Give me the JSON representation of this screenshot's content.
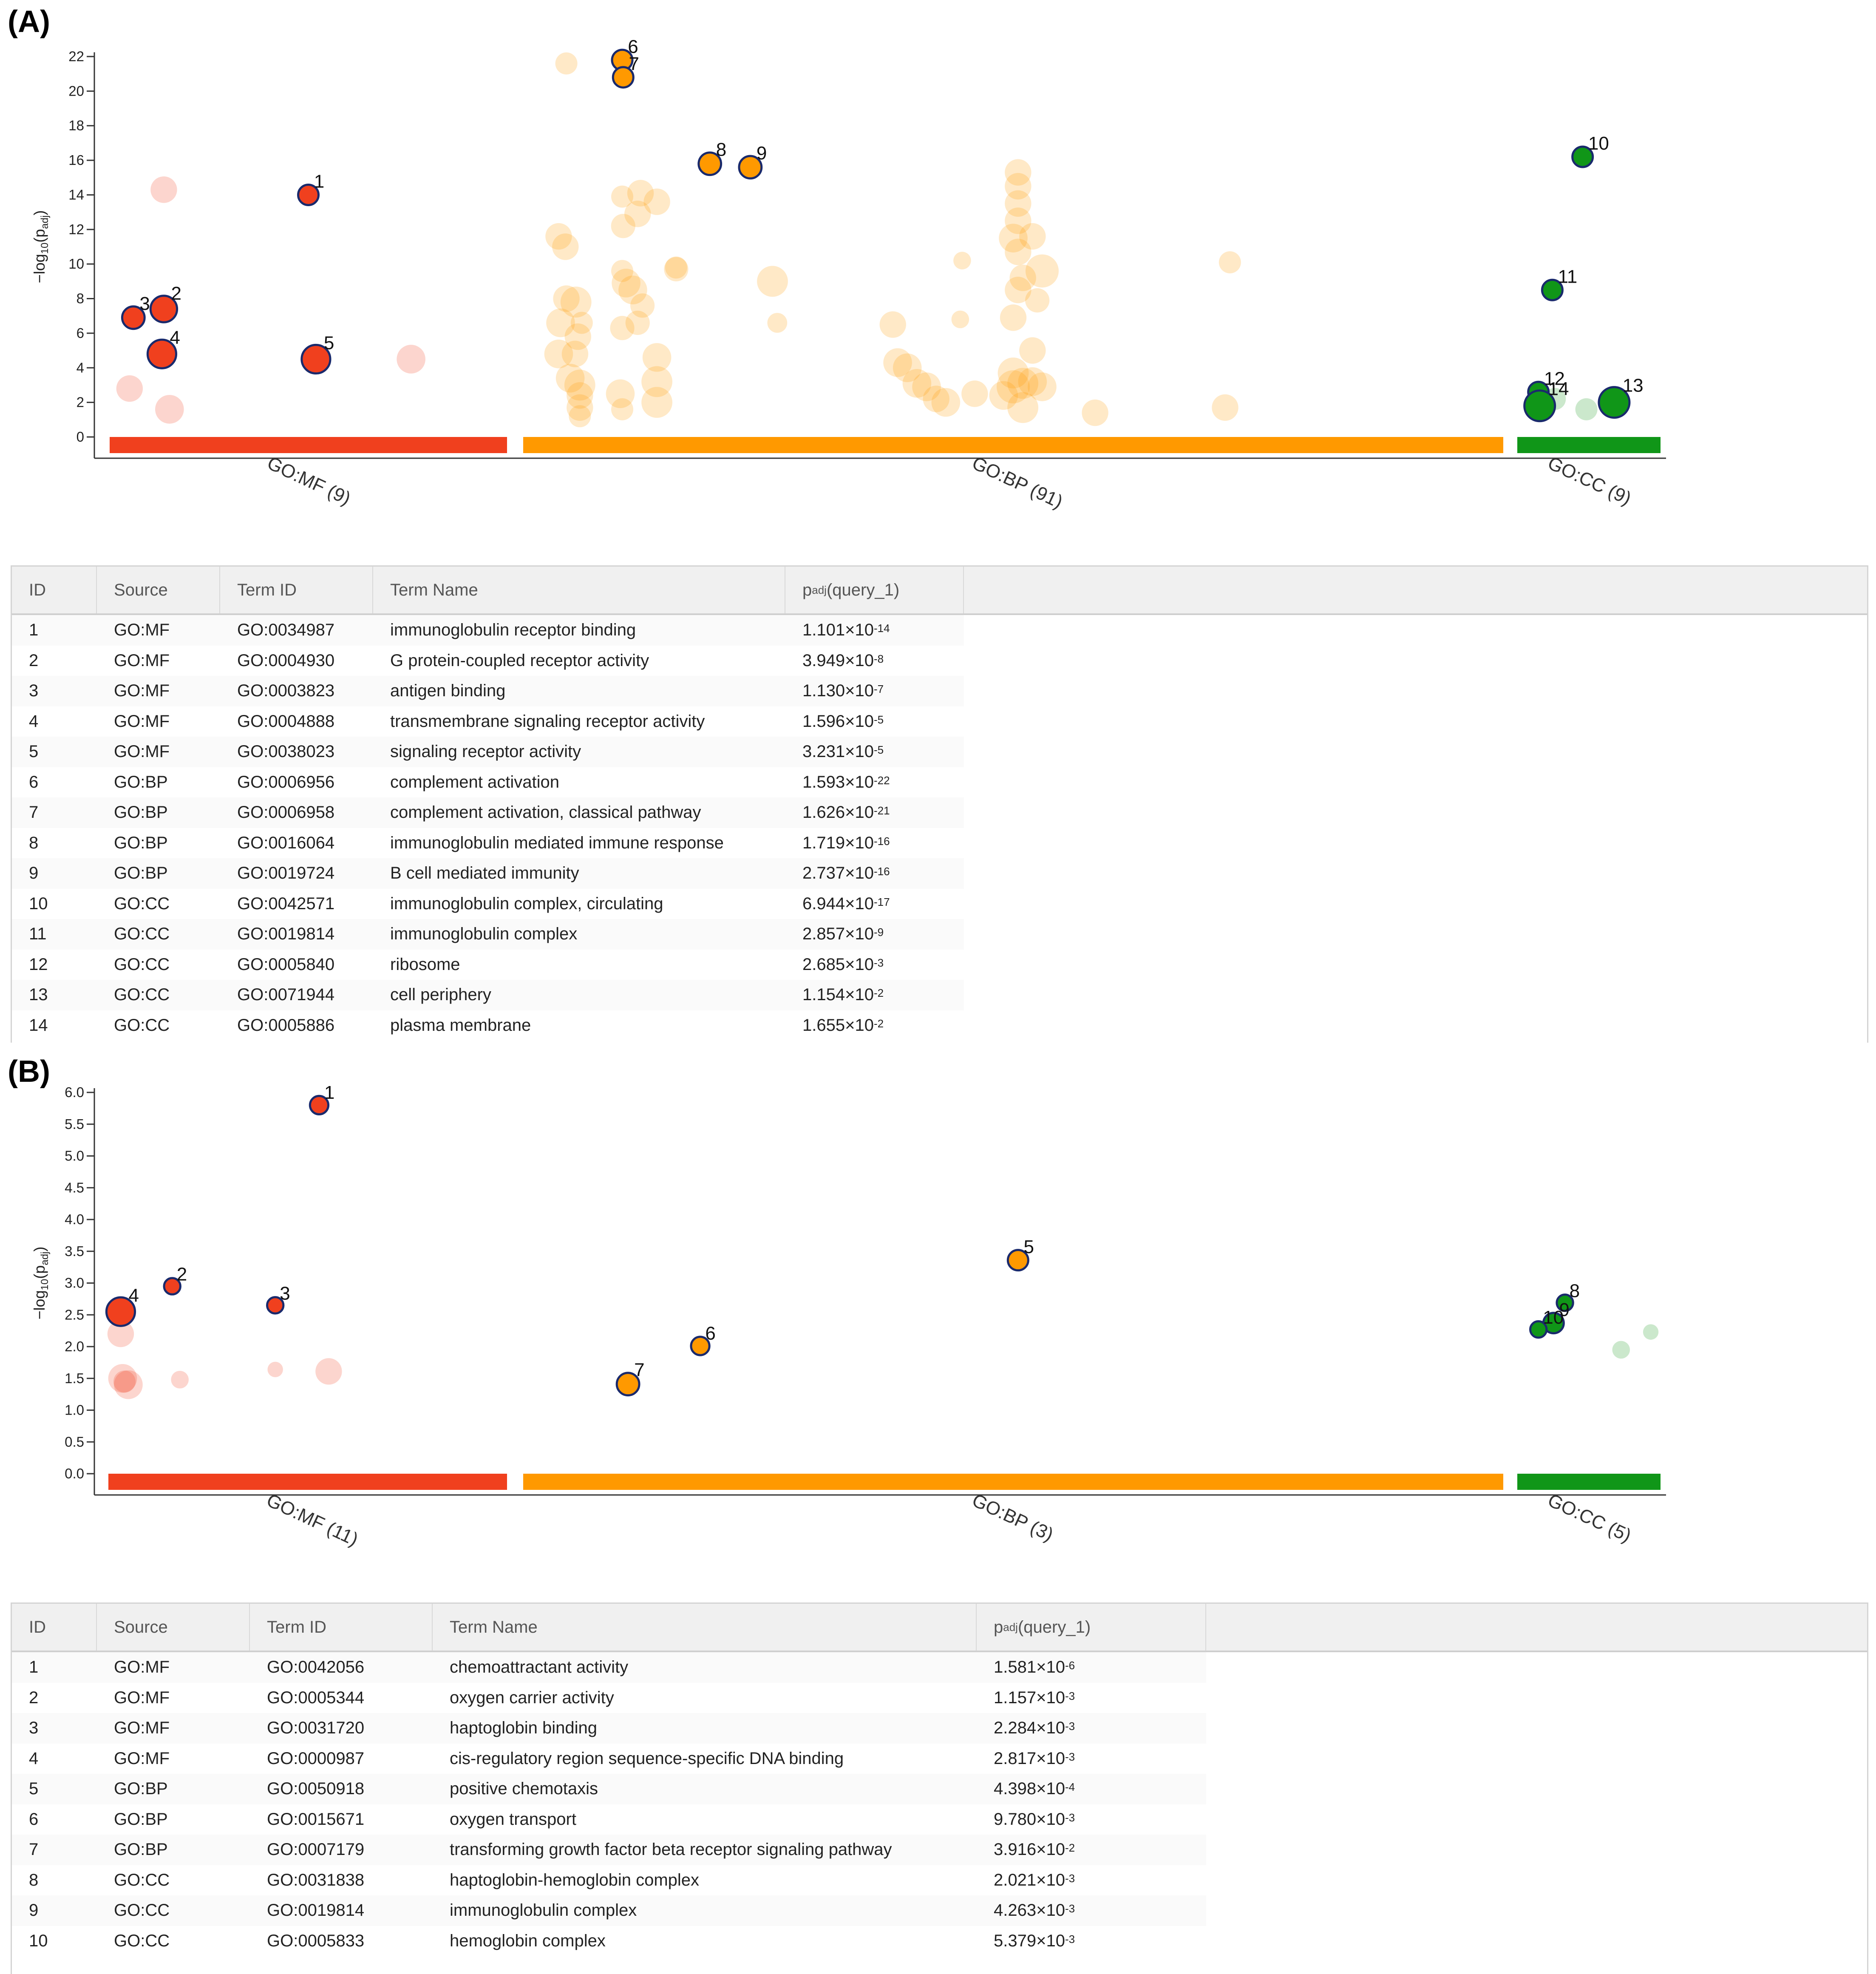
{
  "panel_a": {
    "label": "(A)",
    "chart_data": {
      "type": "scatter",
      "ylabel_parts": [
        "−log",
        "10",
        "(p",
        "adj",
        ")"
      ],
      "ylim": [
        0,
        22
      ],
      "yticks": [
        0,
        2,
        4,
        6,
        8,
        10,
        12,
        14,
        16,
        18,
        20,
        22
      ],
      "categories": [
        {
          "name": "GO:MF (9)",
          "color": "#f0401e",
          "xrange": [
            0,
            1
          ]
        },
        {
          "name": "GO:BP (91)",
          "color": "#ff9900",
          "xrange": [
            0,
            1
          ]
        },
        {
          "name": "GO:CC (9)",
          "color": "#109618",
          "xrange": [
            0,
            1
          ]
        }
      ],
      "highlighted": [
        {
          "id": "1",
          "cat": 0,
          "x": 0.5,
          "y": 14.0,
          "r": 1.0
        },
        {
          "id": "2",
          "cat": 0,
          "x": 0.12,
          "y": 7.4,
          "r": 1.3
        },
        {
          "id": "3",
          "cat": 0,
          "x": 0.04,
          "y": 6.9,
          "r": 1.1
        },
        {
          "id": "4",
          "cat": 0,
          "x": 0.115,
          "y": 4.8,
          "r": 1.4
        },
        {
          "id": "5",
          "cat": 0,
          "x": 0.52,
          "y": 4.5,
          "r": 1.4
        },
        {
          "id": "6",
          "cat": 1,
          "x": 0.094,
          "y": 21.8,
          "r": 1.0
        },
        {
          "id": "7",
          "cat": 1,
          "x": 0.095,
          "y": 20.8,
          "r": 1.0
        },
        {
          "id": "8",
          "cat": 1,
          "x": 0.185,
          "y": 15.8,
          "r": 1.1
        },
        {
          "id": "9",
          "cat": 1,
          "x": 0.227,
          "y": 15.6,
          "r": 1.1
        },
        {
          "id": "10",
          "cat": 2,
          "x": 0.45,
          "y": 16.2,
          "r": 1.0
        },
        {
          "id": "11",
          "cat": 2,
          "x": 0.21,
          "y": 8.5,
          "r": 1.0
        },
        {
          "id": "12",
          "cat": 2,
          "x": 0.1,
          "y": 2.6,
          "r": 1.0
        },
        {
          "id": "13",
          "cat": 2,
          "x": 0.7,
          "y": 2.0,
          "r": 1.5
        },
        {
          "id": "14",
          "cat": 2,
          "x": 0.11,
          "y": 1.8,
          "r": 1.5
        }
      ],
      "background_points": [
        {
          "cat": 0,
          "x": 0.12,
          "y": 14.3,
          "r": 1.2
        },
        {
          "cat": 0,
          "x": 0.03,
          "y": 2.8,
          "r": 1.2
        },
        {
          "cat": 0,
          "x": 0.135,
          "y": 1.6,
          "r": 1.3
        },
        {
          "cat": 0,
          "x": 0.77,
          "y": 4.5,
          "r": 1.3
        },
        {
          "cat": 1,
          "x": 0.036,
          "y": 21.6,
          "r": 1.0
        },
        {
          "cat": 1,
          "x": 0.094,
          "y": 13.9,
          "r": 1.0
        },
        {
          "cat": 1,
          "x": 0.113,
          "y": 14.1,
          "r": 1.2
        },
        {
          "cat": 1,
          "x": 0.13,
          "y": 13.6,
          "r": 1.2
        },
        {
          "cat": 1,
          "x": 0.11,
          "y": 12.9,
          "r": 1.2
        },
        {
          "cat": 1,
          "x": 0.095,
          "y": 12.2,
          "r": 1.1
        },
        {
          "cat": 1,
          "x": 0.028,
          "y": 11.6,
          "r": 1.2
        },
        {
          "cat": 1,
          "x": 0.035,
          "y": 11.0,
          "r": 1.2
        },
        {
          "cat": 1,
          "x": 0.15,
          "y": 9.7,
          "r": 1.1
        },
        {
          "cat": 1,
          "x": 0.094,
          "y": 9.6,
          "r": 1.0
        },
        {
          "cat": 1,
          "x": 0.098,
          "y": 8.9,
          "r": 1.3
        },
        {
          "cat": 1,
          "x": 0.105,
          "y": 8.5,
          "r": 1.3
        },
        {
          "cat": 1,
          "x": 0.036,
          "y": 8.0,
          "r": 1.2
        },
        {
          "cat": 1,
          "x": 0.046,
          "y": 7.8,
          "r": 1.4
        },
        {
          "cat": 1,
          "x": 0.115,
          "y": 7.6,
          "r": 1.1
        },
        {
          "cat": 1,
          "x": 0.03,
          "y": 6.6,
          "r": 1.3
        },
        {
          "cat": 1,
          "x": 0.052,
          "y": 6.6,
          "r": 1.0
        },
        {
          "cat": 1,
          "x": 0.094,
          "y": 6.3,
          "r": 1.1
        },
        {
          "cat": 1,
          "x": 0.11,
          "y": 6.6,
          "r": 1.1
        },
        {
          "cat": 1,
          "x": 0.048,
          "y": 5.8,
          "r": 1.2
        },
        {
          "cat": 1,
          "x": 0.028,
          "y": 4.8,
          "r": 1.3
        },
        {
          "cat": 1,
          "x": 0.045,
          "y": 4.8,
          "r": 1.2
        },
        {
          "cat": 1,
          "x": 0.13,
          "y": 4.6,
          "r": 1.3
        },
        {
          "cat": 1,
          "x": 0.04,
          "y": 3.4,
          "r": 1.3
        },
        {
          "cat": 1,
          "x": 0.05,
          "y": 3.0,
          "r": 1.4
        },
        {
          "cat": 1,
          "x": 0.13,
          "y": 3.2,
          "r": 1.4
        },
        {
          "cat": 1,
          "x": 0.05,
          "y": 2.4,
          "r": 1.2
        },
        {
          "cat": 1,
          "x": 0.092,
          "y": 2.5,
          "r": 1.3
        },
        {
          "cat": 1,
          "x": 0.13,
          "y": 2.0,
          "r": 1.4
        },
        {
          "cat": 1,
          "x": 0.05,
          "y": 1.7,
          "r": 1.2
        },
        {
          "cat": 1,
          "x": 0.094,
          "y": 1.6,
          "r": 1.0
        },
        {
          "cat": 1,
          "x": 0.05,
          "y": 1.2,
          "r": 1.0
        },
        {
          "cat": 1,
          "x": 0.15,
          "y": 9.8,
          "r": 1.0
        },
        {
          "cat": 1,
          "x": 0.25,
          "y": 9.0,
          "r": 1.4
        },
        {
          "cat": 1,
          "x": 0.255,
          "y": 6.6,
          "r": 0.9
        },
        {
          "cat": 1,
          "x": 0.375,
          "y": 6.5,
          "r": 1.2
        },
        {
          "cat": 1,
          "x": 0.447,
          "y": 10.2,
          "r": 0.8
        },
        {
          "cat": 1,
          "x": 0.445,
          "y": 6.8,
          "r": 0.8
        },
        {
          "cat": 1,
          "x": 0.38,
          "y": 4.3,
          "r": 1.3
        },
        {
          "cat": 1,
          "x": 0.39,
          "y": 4.0,
          "r": 1.3
        },
        {
          "cat": 1,
          "x": 0.4,
          "y": 3.1,
          "r": 1.3
        },
        {
          "cat": 1,
          "x": 0.41,
          "y": 2.9,
          "r": 1.3
        },
        {
          "cat": 1,
          "x": 0.42,
          "y": 2.2,
          "r": 1.2
        },
        {
          "cat": 1,
          "x": 0.43,
          "y": 2.0,
          "r": 1.3
        },
        {
          "cat": 1,
          "x": 0.46,
          "y": 2.5,
          "r": 1.2
        },
        {
          "cat": 1,
          "x": 0.49,
          "y": 2.4,
          "r": 1.3
        },
        {
          "cat": 1,
          "x": 0.5,
          "y": 2.9,
          "r": 1.5
        },
        {
          "cat": 1,
          "x": 0.5,
          "y": 3.7,
          "r": 1.4
        },
        {
          "cat": 1,
          "x": 0.51,
          "y": 3.1,
          "r": 1.4
        },
        {
          "cat": 1,
          "x": 0.51,
          "y": 1.7,
          "r": 1.4
        },
        {
          "cat": 1,
          "x": 0.52,
          "y": 3.2,
          "r": 1.3
        },
        {
          "cat": 1,
          "x": 0.52,
          "y": 5.0,
          "r": 1.2
        },
        {
          "cat": 1,
          "x": 0.53,
          "y": 2.9,
          "r": 1.3
        },
        {
          "cat": 1,
          "x": 0.5,
          "y": 6.9,
          "r": 1.2
        },
        {
          "cat": 1,
          "x": 0.505,
          "y": 8.5,
          "r": 1.2
        },
        {
          "cat": 1,
          "x": 0.51,
          "y": 9.2,
          "r": 1.2
        },
        {
          "cat": 1,
          "x": 0.505,
          "y": 10.7,
          "r": 1.2
        },
        {
          "cat": 1,
          "x": 0.5,
          "y": 11.5,
          "r": 1.3
        },
        {
          "cat": 1,
          "x": 0.52,
          "y": 11.6,
          "r": 1.2
        },
        {
          "cat": 1,
          "x": 0.505,
          "y": 12.5,
          "r": 1.2
        },
        {
          "cat": 1,
          "x": 0.505,
          "y": 13.5,
          "r": 1.2
        },
        {
          "cat": 1,
          "x": 0.505,
          "y": 14.5,
          "r": 1.2
        },
        {
          "cat": 1,
          "x": 0.505,
          "y": 15.3,
          "r": 1.2
        },
        {
          "cat": 1,
          "x": 0.525,
          "y": 7.9,
          "r": 1.1
        },
        {
          "cat": 1,
          "x": 0.53,
          "y": 9.6,
          "r": 1.5
        },
        {
          "cat": 1,
          "x": 0.585,
          "y": 1.4,
          "r": 1.2
        },
        {
          "cat": 1,
          "x": 0.725,
          "y": 10.1,
          "r": 1.0
        },
        {
          "cat": 1,
          "x": 0.72,
          "y": 1.7,
          "r": 1.2
        },
        {
          "cat": 2,
          "x": 0.23,
          "y": 2.2,
          "r": 1.0
        },
        {
          "cat": 2,
          "x": 0.48,
          "y": 1.6,
          "r": 1.0
        }
      ]
    },
    "table": {
      "columns": [
        "ID",
        "Source",
        "Term ID",
        "Term Name",
        "p_adj (query_1)"
      ],
      "padj_sub": "adj",
      "padj_pre": "p",
      "padj_post": " (query_1)",
      "rows": [
        {
          "id": "1",
          "source": "GO:MF",
          "term_id": "GO:0034987",
          "term_name": "immunoglobulin receptor binding",
          "padj_mant": "1.101×10",
          "padj_exp": "-14"
        },
        {
          "id": "2",
          "source": "GO:MF",
          "term_id": "GO:0004930",
          "term_name": "G protein-coupled receptor activity",
          "padj_mant": "3.949×10",
          "padj_exp": "-8"
        },
        {
          "id": "3",
          "source": "GO:MF",
          "term_id": "GO:0003823",
          "term_name": "antigen binding",
          "padj_mant": "1.130×10",
          "padj_exp": "-7"
        },
        {
          "id": "4",
          "source": "GO:MF",
          "term_id": "GO:0004888",
          "term_name": "transmembrane signaling receptor activity",
          "padj_mant": "1.596×10",
          "padj_exp": "-5"
        },
        {
          "id": "5",
          "source": "GO:MF",
          "term_id": "GO:0038023",
          "term_name": "signaling receptor activity",
          "padj_mant": "3.231×10",
          "padj_exp": "-5"
        },
        {
          "id": "6",
          "source": "GO:BP",
          "term_id": "GO:0006956",
          "term_name": "complement activation",
          "padj_mant": "1.593×10",
          "padj_exp": "-22"
        },
        {
          "id": "7",
          "source": "GO:BP",
          "term_id": "GO:0006958",
          "term_name": "complement activation, classical pathway",
          "padj_mant": "1.626×10",
          "padj_exp": "-21"
        },
        {
          "id": "8",
          "source": "GO:BP",
          "term_id": "GO:0016064",
          "term_name": "immunoglobulin mediated immune response",
          "padj_mant": "1.719×10",
          "padj_exp": "-16"
        },
        {
          "id": "9",
          "source": "GO:BP",
          "term_id": "GO:0019724",
          "term_name": "B cell mediated immunity",
          "padj_mant": "2.737×10",
          "padj_exp": "-16"
        },
        {
          "id": "10",
          "source": "GO:CC",
          "term_id": "GO:0042571",
          "term_name": "immunoglobulin complex, circulating",
          "padj_mant": "6.944×10",
          "padj_exp": "-17"
        },
        {
          "id": "11",
          "source": "GO:CC",
          "term_id": "GO:0019814",
          "term_name": "immunoglobulin complex",
          "padj_mant": "2.857×10",
          "padj_exp": "-9"
        },
        {
          "id": "12",
          "source": "GO:CC",
          "term_id": "GO:0005840",
          "term_name": "ribosome",
          "padj_mant": "2.685×10",
          "padj_exp": "-3"
        },
        {
          "id": "13",
          "source": "GO:CC",
          "term_id": "GO:0071944",
          "term_name": "cell periphery",
          "padj_mant": "1.154×10",
          "padj_exp": "-2"
        },
        {
          "id": "14",
          "source": "GO:CC",
          "term_id": "GO:0005886",
          "term_name": "plasma membrane",
          "padj_mant": "1.655×10",
          "padj_exp": "-2"
        }
      ]
    }
  },
  "panel_b": {
    "label": "(B)",
    "chart_data": {
      "type": "scatter",
      "ylabel_parts": [
        "−log",
        "10",
        "(p",
        "adj",
        ")"
      ],
      "ylim": [
        0,
        6
      ],
      "yticks": [
        0.0,
        0.5,
        1.0,
        1.5,
        2.0,
        2.5,
        3.0,
        3.5,
        4.0,
        4.5,
        5.0,
        5.5,
        6.0
      ],
      "categories": [
        {
          "name": "GO:MF (11)",
          "color": "#f0401e",
          "xrange": [
            0,
            1
          ]
        },
        {
          "name": "GO:BP (3)",
          "color": "#ff9900",
          "xrange": [
            0,
            1
          ]
        },
        {
          "name": "GO:CC (5)",
          "color": "#109618",
          "xrange": [
            0,
            1
          ]
        }
      ],
      "highlighted": [
        {
          "id": "1",
          "cat": 0,
          "x": 0.53,
          "y": 5.8,
          "r": 0.9
        },
        {
          "id": "2",
          "cat": 0,
          "x": 0.145,
          "y": 2.95,
          "r": 0.8
        },
        {
          "id": "3",
          "cat": 0,
          "x": 0.415,
          "y": 2.65,
          "r": 0.8
        },
        {
          "id": "4",
          "cat": 0,
          "x": 0.01,
          "y": 2.55,
          "r": 1.4
        },
        {
          "id": "5",
          "cat": 1,
          "x": 0.505,
          "y": 3.36,
          "r": 1.0
        },
        {
          "id": "6",
          "cat": 1,
          "x": 0.175,
          "y": 2.01,
          "r": 0.9
        },
        {
          "id": "7",
          "cat": 1,
          "x": 0.1,
          "y": 1.41,
          "r": 1.1
        },
        {
          "id": "8",
          "cat": 2,
          "x": 0.31,
          "y": 2.69,
          "r": 0.8
        },
        {
          "id": "9",
          "cat": 2,
          "x": 0.22,
          "y": 2.37,
          "r": 1.0
        },
        {
          "id": "10",
          "cat": 2,
          "x": 0.1,
          "y": 2.27,
          "r": 0.8
        }
      ],
      "background_points": [
        {
          "cat": 0,
          "x": 0.01,
          "y": 2.2,
          "r": 1.2
        },
        {
          "cat": 0,
          "x": 0.015,
          "y": 1.5,
          "r": 1.3
        },
        {
          "cat": 0,
          "x": 0.03,
          "y": 1.4,
          "r": 1.3
        },
        {
          "cat": 0,
          "x": 0.02,
          "y": 1.45,
          "r": 1.0
        },
        {
          "cat": 0,
          "x": 0.165,
          "y": 1.48,
          "r": 0.8
        },
        {
          "cat": 0,
          "x": 0.415,
          "y": 1.64,
          "r": 0.7
        },
        {
          "cat": 0,
          "x": 0.555,
          "y": 1.61,
          "r": 1.2
        },
        {
          "cat": 2,
          "x": 0.755,
          "y": 1.95,
          "r": 0.8
        },
        {
          "cat": 2,
          "x": 0.99,
          "y": 2.23,
          "r": 0.7
        }
      ]
    },
    "table": {
      "columns": [
        "ID",
        "Source",
        "Term ID",
        "Term Name",
        "p_adj (query_1)"
      ],
      "padj_sub": "adj",
      "padj_pre": "p",
      "padj_post": " (query_1)",
      "rows": [
        {
          "id": "1",
          "source": "GO:MF",
          "term_id": "GO:0042056",
          "term_name": "chemoattractant activity",
          "padj_mant": "1.581×10",
          "padj_exp": "-6"
        },
        {
          "id": "2",
          "source": "GO:MF",
          "term_id": "GO:0005344",
          "term_name": "oxygen carrier activity",
          "padj_mant": "1.157×10",
          "padj_exp": "-3"
        },
        {
          "id": "3",
          "source": "GO:MF",
          "term_id": "GO:0031720",
          "term_name": "haptoglobin binding",
          "padj_mant": "2.284×10",
          "padj_exp": "-3"
        },
        {
          "id": "4",
          "source": "GO:MF",
          "term_id": "GO:0000987",
          "term_name": "cis-regulatory region sequence-specific DNA binding",
          "padj_mant": "2.817×10",
          "padj_exp": "-3"
        },
        {
          "id": "5",
          "source": "GO:BP",
          "term_id": "GO:0050918",
          "term_name": "positive chemotaxis",
          "padj_mant": "4.398×10",
          "padj_exp": "-4"
        },
        {
          "id": "6",
          "source": "GO:BP",
          "term_id": "GO:0015671",
          "term_name": "oxygen transport",
          "padj_mant": "9.780×10",
          "padj_exp": "-3"
        },
        {
          "id": "7",
          "source": "GO:BP",
          "term_id": "GO:0007179",
          "term_name": "transforming growth factor beta receptor signaling pathway",
          "padj_mant": "3.916×10",
          "padj_exp": "-2"
        },
        {
          "id": "8",
          "source": "GO:CC",
          "term_id": "GO:0031838",
          "term_name": "haptoglobin-hemoglobin complex",
          "padj_mant": "2.021×10",
          "padj_exp": "-3"
        },
        {
          "id": "9",
          "source": "GO:CC",
          "term_id": "GO:0019814",
          "term_name": "immunoglobulin complex",
          "padj_mant": "4.263×10",
          "padj_exp": "-3"
        },
        {
          "id": "10",
          "source": "GO:CC",
          "term_id": "GO:0005833",
          "term_name": "hemoglobin complex",
          "padj_mant": "5.379×10",
          "padj_exp": "-3"
        }
      ]
    }
  }
}
